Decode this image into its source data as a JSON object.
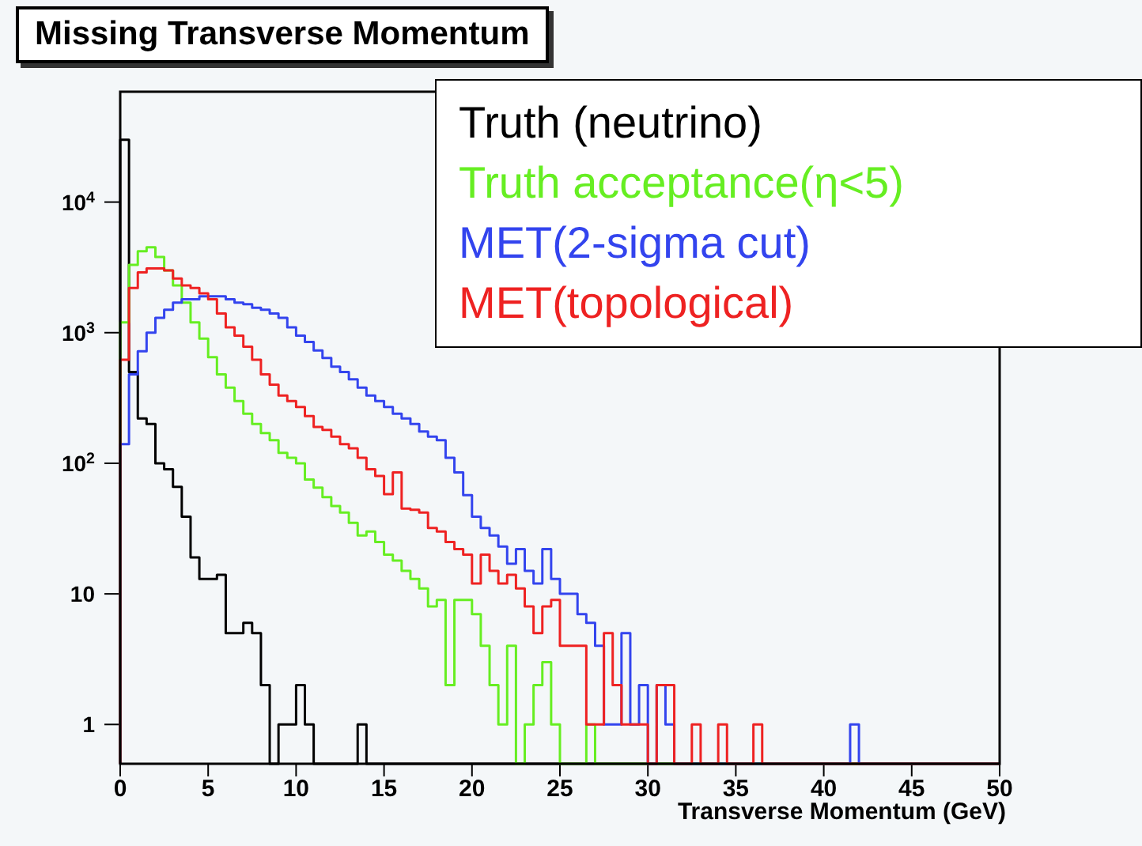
{
  "chart_data": {
    "type": "histogram",
    "title": "Missing Transverse Momentum",
    "xlabel": "Transverse Momentum (GeV)",
    "bins": [
      0,
      0.5,
      1,
      1.5,
      2,
      2.5,
      3,
      3.5,
      4,
      4.5,
      5,
      5.5,
      6,
      6.5,
      7,
      7.5,
      8,
      8.5,
      9,
      9.5,
      10,
      10.5,
      11,
      11.5,
      12,
      12.5,
      13,
      13.5,
      14,
      14.5,
      15,
      15.5,
      16,
      16.5,
      17,
      17.5,
      18,
      18.5,
      19,
      19.5,
      20,
      20.5,
      21,
      21.5,
      22,
      22.5,
      23,
      23.5,
      24,
      24.5,
      25,
      25.5,
      26,
      26.5,
      27,
      27.5,
      28,
      28.5,
      29,
      29.5,
      30,
      30.5,
      31,
      31.5,
      32,
      32.5,
      33,
      33.5,
      34,
      34.5,
      35,
      35.5,
      36,
      36.5,
      37,
      37.5,
      38,
      38.5,
      39,
      39.5,
      40,
      40.5,
      41,
      41.5,
      42,
      42.5,
      43,
      43.5,
      44,
      44.5,
      45,
      45.5,
      46,
      46.5,
      47,
      47.5,
      48,
      48.5,
      49,
      49.5,
      50
    ],
    "series": [
      {
        "name": "Truth (neutrino)",
        "color": "#000000",
        "values": [
          30000,
          500,
          220,
          200,
          100,
          90,
          66,
          39,
          19,
          13,
          13,
          14,
          5,
          5,
          6,
          5,
          2,
          null,
          1,
          1,
          2,
          1,
          null,
          null,
          null,
          null,
          null,
          1,
          null,
          null,
          null,
          null,
          null,
          null,
          null,
          null,
          null,
          null,
          null,
          null,
          null,
          null,
          null,
          null,
          null,
          null,
          null,
          null,
          null,
          null,
          null,
          null,
          null,
          null,
          null,
          null,
          null,
          null,
          null,
          null,
          null,
          null,
          null,
          null,
          null,
          null,
          null,
          null,
          null,
          null,
          null,
          null,
          null,
          null,
          null,
          null,
          null,
          null,
          null,
          null,
          null,
          null,
          null,
          null,
          null,
          null,
          null,
          null,
          null,
          null,
          null,
          null,
          null,
          null,
          null,
          null,
          null,
          null,
          null,
          null
        ]
      },
      {
        "name": "Truth acceptance(η<5)",
        "color": "#66ee22",
        "values": [
          1200,
          3300,
          4200,
          4500,
          3800,
          3000,
          2300,
          1700,
          1200,
          900,
          650,
          480,
          380,
          300,
          240,
          200,
          170,
          150,
          120,
          110,
          100,
          75,
          65,
          55,
          47,
          42,
          35,
          28,
          30,
          25,
          20,
          18,
          15,
          13,
          11,
          8,
          9,
          2,
          9,
          9,
          7,
          4,
          2,
          1,
          4,
          null,
          1,
          2,
          3,
          1,
          null,
          null,
          null,
          1,
          null,
          null,
          null,
          null,
          null,
          null,
          null,
          null,
          null,
          null,
          null,
          null,
          null,
          null,
          null,
          null,
          null,
          null,
          null,
          null,
          null,
          null,
          null,
          null,
          null,
          null,
          null,
          null,
          null,
          null,
          null,
          null,
          null,
          null,
          null,
          null,
          null,
          null,
          null,
          null,
          null,
          null,
          null,
          null,
          null,
          null
        ]
      },
      {
        "name": "MET(2-sigma cut)",
        "color": "#3344ee",
        "values": [
          140,
          480,
          720,
          1000,
          1300,
          1500,
          1700,
          1800,
          1800,
          1900,
          1900,
          1900,
          1800,
          1700,
          1650,
          1550,
          1500,
          1400,
          1300,
          1100,
          950,
          850,
          730,
          640,
          550,
          500,
          440,
          380,
          330,
          300,
          270,
          240,
          220,
          200,
          175,
          160,
          150,
          110,
          85,
          57,
          39,
          32,
          28,
          23,
          17,
          22,
          15,
          12,
          22,
          13,
          10,
          10,
          7,
          6,
          4,
          1,
          1,
          5,
          1,
          2,
          null,
          2,
          1,
          null,
          null,
          null,
          null,
          null,
          null,
          null,
          null,
          null,
          null,
          null,
          null,
          null,
          null,
          null,
          null,
          null,
          null,
          null,
          null,
          1,
          null,
          null,
          null,
          null,
          null,
          null,
          null,
          null,
          null,
          null,
          null,
          null,
          null,
          null,
          null,
          null
        ]
      },
      {
        "name": "MET(topological)",
        "color": "#ee2222",
        "values": [
          620,
          2200,
          2900,
          3100,
          3100,
          3000,
          2600,
          2300,
          2200,
          2000,
          1800,
          1400,
          1100,
          950,
          780,
          620,
          480,
          400,
          330,
          300,
          270,
          230,
          190,
          180,
          160,
          140,
          130,
          110,
          90,
          80,
          58,
          85,
          45,
          44,
          42,
          32,
          30,
          25,
          22,
          20,
          12,
          20,
          15,
          12,
          14,
          11,
          8,
          5,
          8,
          9,
          4,
          4,
          4,
          1,
          1,
          5,
          2,
          1,
          1,
          1,
          null,
          2,
          2,
          null,
          null,
          1,
          null,
          null,
          1,
          null,
          null,
          null,
          1,
          null,
          null,
          null,
          null,
          null,
          null,
          null,
          null,
          null,
          null,
          null,
          null,
          null,
          null,
          null,
          null,
          null,
          null,
          null,
          null,
          null,
          null,
          null,
          null,
          null,
          null,
          null
        ]
      }
    ],
    "log": "y",
    "xlim": [
      0,
      50
    ],
    "xticks": [
      0,
      5,
      10,
      15,
      20,
      25,
      30,
      35,
      40,
      45,
      50
    ],
    "ylim": [
      0.5,
      70000
    ],
    "yticks": [
      1,
      10,
      {
        "value": 100,
        "label": "10$^{2}$"
      },
      {
        "value": 1000,
        "label": "10$^{3}$"
      },
      {
        "value": 10000,
        "label": "10$^{4}$"
      }
    ],
    "legend": "top right"
  }
}
